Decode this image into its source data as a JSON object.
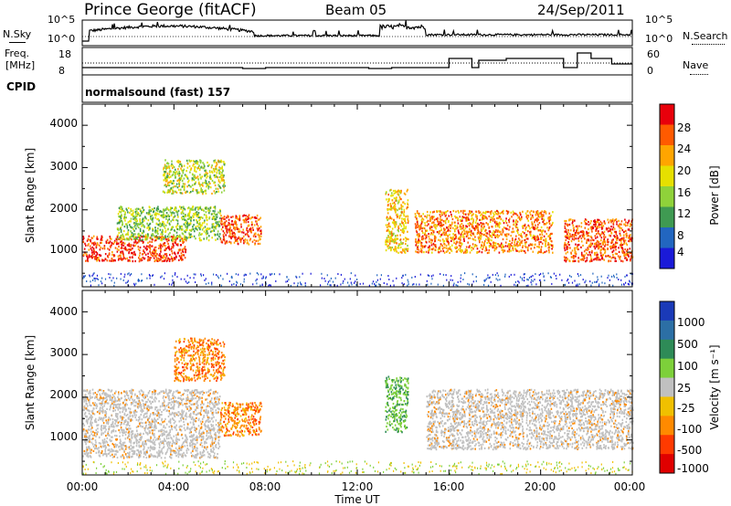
{
  "header": {
    "station": "Prince George (fitACF)",
    "beam": "Beam 05",
    "date": "24/Sep/2011"
  },
  "sky_panel": {
    "left_label": "N.Sky",
    "right_label": "N.Search",
    "left_ticks": [
      "10^5",
      "10^0"
    ],
    "right_ticks": [
      "10^5",
      "10^0"
    ]
  },
  "freq_panel": {
    "left_label_top": "Freq.",
    "left_label_bottom": "[MHz]",
    "right_label": "Nave",
    "left_ticks": [
      "18",
      "8"
    ],
    "right_ticks": [
      "60",
      "0"
    ]
  },
  "cpid": {
    "label": "CPID",
    "value": "normalsound (fast) 157"
  },
  "power_colorbar": {
    "title": "Power [dB]",
    "ticks": [
      "28",
      "24",
      "20",
      "16",
      "12",
      "8",
      "4"
    ],
    "colors": [
      "#e8000b",
      "#ff5a00",
      "#ffa500",
      "#e6e000",
      "#8fd23a",
      "#3f9a52",
      "#2266c0",
      "#1a1ad8"
    ]
  },
  "velocity_colorbar": {
    "title": "Velocity [m s⁻¹]",
    "ticks": [
      "1000",
      "500",
      "100",
      "25",
      "-25",
      "-100",
      "-500",
      "-1000"
    ],
    "colors": [
      "#1a3ab8",
      "#2c6fa5",
      "#2e8b57",
      "#7dd03a",
      "#c0c0c0",
      "#f0c000",
      "#ff8a00",
      "#ff3a00",
      "#e00000"
    ]
  },
  "axes": {
    "ylabel": "Slant Range [km]",
    "y_ticks": [
      "4000",
      "3000",
      "2000",
      "1000"
    ],
    "x_ticks": [
      "00:00",
      "04:00",
      "08:00",
      "12:00",
      "16:00",
      "20:00",
      "00:00"
    ],
    "xlabel": "Time UT"
  },
  "chart_data": [
    {
      "type": "heatmap",
      "title": "",
      "xlabel": "",
      "ylabel": "Slant Range [km]",
      "x_range_hours": [
        0,
        24
      ],
      "ylim": [
        180,
        4500
      ],
      "colorbar": "Power [dB]",
      "echo_regions": [
        {
          "t_start": 0.0,
          "t_end": 4.5,
          "range_min": 800,
          "range_max": 1400,
          "power_db": 26
        },
        {
          "t_start": 1.5,
          "t_end": 6.0,
          "range_min": 1300,
          "range_max": 2100,
          "power_db": 12
        },
        {
          "t_start": 3.5,
          "t_end": 6.2,
          "range_min": 2400,
          "range_max": 3200,
          "power_db": 14
        },
        {
          "t_start": 6.0,
          "t_end": 7.8,
          "range_min": 1200,
          "range_max": 1900,
          "power_db": 24
        },
        {
          "t_start": 13.2,
          "t_end": 14.2,
          "range_min": 1000,
          "range_max": 2500,
          "power_db": 18
        },
        {
          "t_start": 14.5,
          "t_end": 20.5,
          "range_min": 1000,
          "range_max": 2000,
          "power_db": 22
        },
        {
          "t_start": 21.0,
          "t_end": 24.0,
          "range_min": 800,
          "range_max": 1800,
          "power_db": 24
        }
      ]
    },
    {
      "type": "heatmap",
      "title": "",
      "xlabel": "Time UT",
      "ylabel": "Slant Range [km]",
      "x_range_hours": [
        0,
        24
      ],
      "ylim": [
        180,
        4500
      ],
      "colorbar": "Velocity [m s⁻¹]",
      "echo_regions": [
        {
          "t_start": 0.0,
          "t_end": 6.0,
          "range_min": 600,
          "range_max": 2200,
          "velocity": 0
        },
        {
          "t_start": 4.0,
          "t_end": 6.2,
          "range_min": 2400,
          "range_max": 3400,
          "velocity": -500
        },
        {
          "t_start": 6.0,
          "t_end": 7.8,
          "range_min": 1100,
          "range_max": 1900,
          "velocity": -500
        },
        {
          "t_start": 13.2,
          "t_end": 14.2,
          "range_min": 1200,
          "range_max": 2500,
          "velocity": 100
        },
        {
          "t_start": 15.0,
          "t_end": 24.0,
          "range_min": 800,
          "range_max": 2200,
          "velocity": 0
        }
      ]
    }
  ]
}
